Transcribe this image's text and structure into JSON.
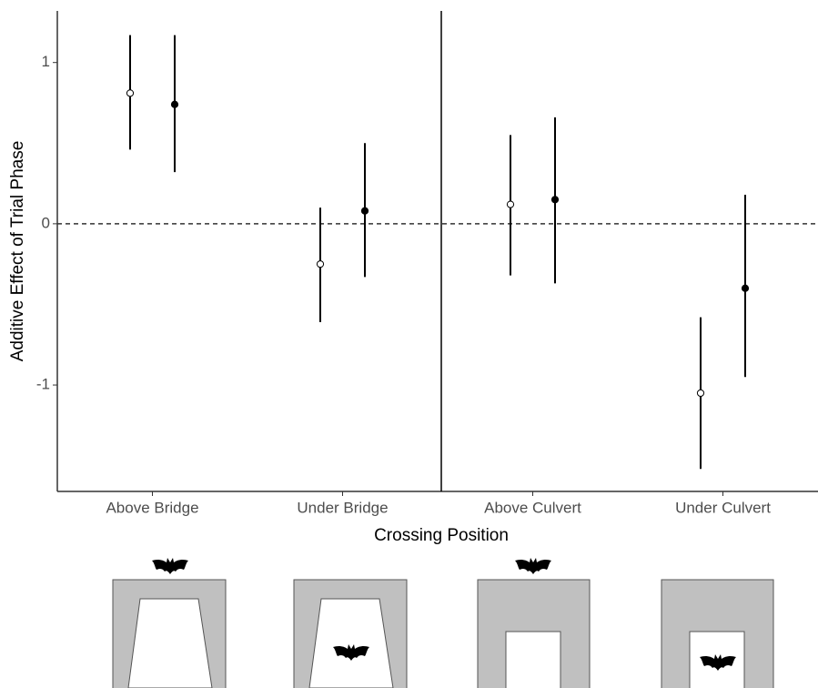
{
  "chart_data": {
    "type": "errorbar",
    "x_label": "Crossing Position",
    "y_label": "Additive Effect of Trial Phase",
    "categories": [
      "Above Bridge",
      "Under Bridge",
      "Above Culvert",
      "Under Culvert"
    ],
    "series": [
      {
        "color": "#000000",
        "fill": "#ffffff",
        "values": [
          0.81,
          -0.25,
          0.12,
          -1.05
        ],
        "lower": [
          0.46,
          -0.61,
          -0.32,
          -1.52
        ],
        "upper": [
          1.17,
          0.1,
          0.55,
          -0.58
        ]
      },
      {
        "color": "#000000",
        "fill": "#000000",
        "values": [
          0.74,
          0.08,
          0.15,
          -0.4
        ],
        "lower": [
          0.32,
          -0.33,
          -0.37,
          -0.95
        ],
        "upper": [
          1.17,
          0.5,
          0.66,
          0.18
        ]
      }
    ],
    "ylim": [
      -1.66,
      1.32
    ],
    "yticks": [
      -1,
      0,
      1
    ],
    "reference_line": 0
  }
}
